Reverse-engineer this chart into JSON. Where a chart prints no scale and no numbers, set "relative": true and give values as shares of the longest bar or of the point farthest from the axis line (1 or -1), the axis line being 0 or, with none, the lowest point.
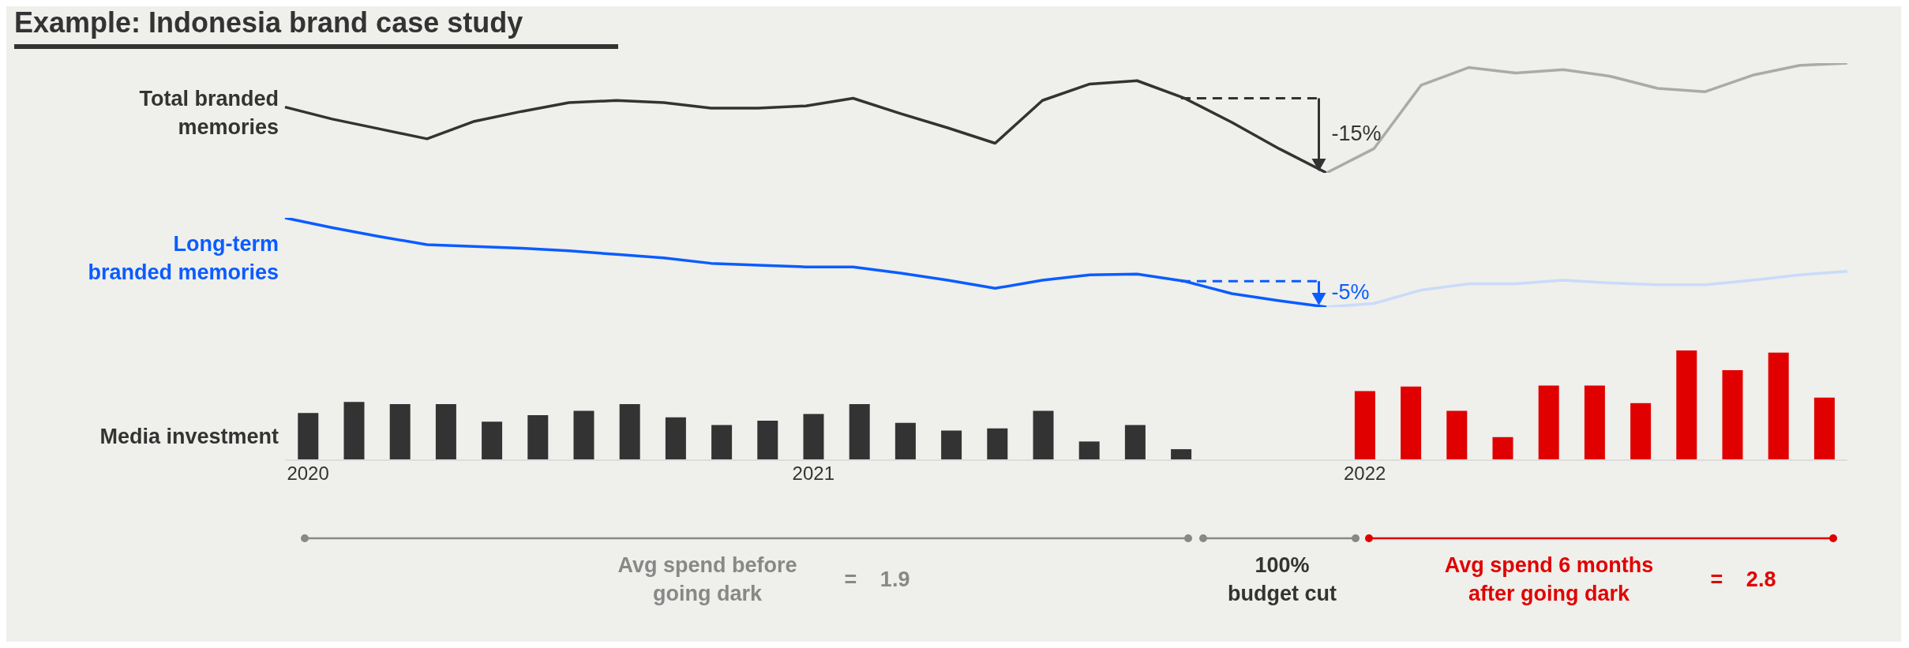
{
  "chart_data": [
    {
      "type": "line",
      "title": "Example: Indonesia brand case study",
      "ylabel": "Total branded memories",
      "relative": true,
      "tick_labels": false,
      "categories": [
        null,
        null,
        null,
        null,
        null,
        null,
        null,
        null,
        null,
        null,
        null,
        null,
        null,
        null,
        null,
        null,
        null,
        null,
        null,
        null,
        null,
        null,
        null,
        null,
        null,
        null,
        null,
        null,
        null,
        null,
        null,
        null,
        null,
        null
      ],
      "series": [
        {
          "color": "#333333",
          "values": [
            0.6,
            0.49,
            0.4,
            0.31,
            0.47,
            0.56,
            0.64,
            0.66,
            0.64,
            0.59,
            0.59,
            0.61,
            0.68,
            0.54,
            0.41,
            0.27,
            0.66,
            0.81,
            0.84,
            0.68,
            0.46,
            0.22,
            0,
            null,
            null,
            null,
            null,
            null,
            null,
            null,
            null,
            null,
            null,
            null
          ]
        },
        {
          "color": "#aaaaaa",
          "values": [
            null,
            null,
            null,
            null,
            null,
            null,
            null,
            null,
            null,
            null,
            null,
            null,
            null,
            null,
            null,
            null,
            null,
            null,
            null,
            null,
            null,
            null,
            0,
            0.22,
            0.8,
            0.96,
            0.91,
            0.94,
            0.88,
            0.77,
            0.74,
            0.89,
            0.98,
            1
          ]
        }
      ],
      "annotations": [
        "-15%"
      ]
    },
    {
      "type": "line",
      "ylabel": "Long-term branded memories",
      "relative": true,
      "tick_labels": false,
      "categories": [
        null,
        null,
        null,
        null,
        null,
        null,
        null,
        null,
        null,
        null,
        null,
        null,
        null,
        null,
        null,
        null,
        null,
        null,
        null,
        null,
        null,
        null,
        null,
        null,
        null,
        null,
        null,
        null,
        null,
        null,
        null,
        null,
        null,
        null
      ],
      "series": [
        {
          "color": "#0a5cff",
          "values": [
            1,
            0.89,
            0.79,
            0.7,
            0.68,
            0.66,
            0.63,
            0.59,
            0.55,
            0.49,
            0.47,
            0.45,
            0.45,
            0.38,
            0.3,
            0.21,
            0.3,
            0.36,
            0.37,
            0.29,
            0.15,
            0.07,
            0,
            null,
            null,
            null,
            null,
            null,
            null,
            null,
            null,
            null,
            null,
            null
          ]
        },
        {
          "color": "#c9dbfa",
          "values": [
            null,
            null,
            null,
            null,
            null,
            null,
            null,
            null,
            null,
            null,
            null,
            null,
            null,
            null,
            null,
            null,
            null,
            null,
            null,
            null,
            null,
            null,
            0,
            0.04,
            0.19,
            0.26,
            0.26,
            0.3,
            0.27,
            0.25,
            0.25,
            0.3,
            0.36,
            0.4
          ]
        }
      ],
      "annotations": [
        "-5%"
      ]
    },
    {
      "type": "bar",
      "ylabel": "Media investment",
      "relative": true,
      "tick_labels": "x",
      "categories": [
        "2020",
        null,
        null,
        null,
        null,
        null,
        null,
        null,
        null,
        null,
        null,
        "2021",
        null,
        null,
        null,
        null,
        null,
        null,
        null,
        null,
        null,
        null,
        null,
        "2022",
        null,
        null,
        null,
        null,
        null,
        null,
        null,
        null,
        null,
        null
      ],
      "values": [
        0.43,
        0.53,
        0.51,
        0.51,
        0.35,
        0.41,
        0.45,
        0.51,
        0.39,
        0.32,
        0.36,
        0.42,
        0.51,
        0.34,
        0.27,
        0.29,
        0.45,
        0.17,
        0.32,
        0.1,
        null,
        null,
        null,
        0.63,
        0.67,
        0.45,
        0.21,
        0.68,
        0.68,
        0.52,
        1,
        0.82,
        0.98,
        0.57
      ],
      "colors": [
        "#333333",
        "#333333",
        "#333333",
        "#333333",
        "#333333",
        "#333333",
        "#333333",
        "#333333",
        "#333333",
        "#333333",
        "#333333",
        "#333333",
        "#333333",
        "#333333",
        "#333333",
        "#333333",
        "#333333",
        "#333333",
        "#333333",
        "#333333",
        null,
        null,
        null,
        "#e00000",
        "#e00000",
        "#e00000",
        "#e00000",
        "#e00000",
        "#e00000",
        "#e00000",
        "#e00000",
        "#e00000",
        "#e00000",
        "#e00000"
      ],
      "annotations": [
        "Avg spend before going dark",
        "= 1.9",
        "100% budget cut",
        "Avg spend 6 months after going dark",
        "= 2.8"
      ]
    }
  ]
}
